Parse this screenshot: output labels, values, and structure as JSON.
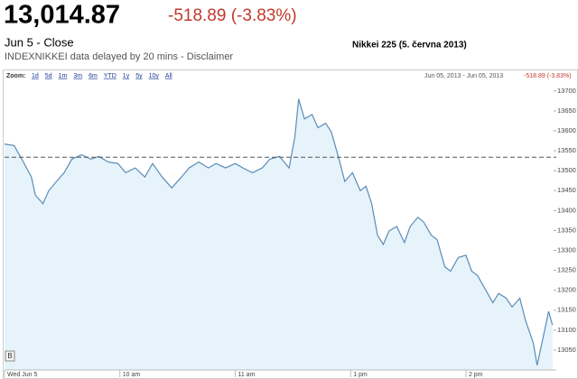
{
  "header": {
    "price": "13,014.87",
    "change": "-518.89 (-3.83%)",
    "date": "Jun 5 - Close",
    "source": "INDEXNIKKEI data delayed by 20 mins - Disclaimer",
    "chart_title": "Nikkei 225 (5. června 2013)"
  },
  "toolbar": {
    "zoom": "Zoom:",
    "links": [
      "1d",
      "5d",
      "1m",
      "3m",
      "6m",
      "YTD",
      "1y",
      "5y",
      "10y",
      "All"
    ],
    "range": "Jun 05, 2013 - Jun 05, 2013",
    "change": "-518.89 (-3.83%)"
  },
  "chart_data": {
    "type": "area",
    "flag": "B",
    "x": [
      0,
      5,
      9,
      14,
      16,
      20,
      23,
      27,
      31,
      35,
      40,
      45,
      49,
      54,
      59,
      63,
      68,
      73,
      77,
      82,
      87,
      92,
      96,
      101,
      106,
      110,
      115,
      120,
      124,
      129,
      134,
      138,
      143,
      148,
      151,
      153,
      156,
      160,
      163,
      167,
      170,
      174,
      177,
      181,
      185,
      188,
      191,
      194,
      197,
      200,
      204,
      208,
      211,
      215,
      218,
      222,
      225,
      229,
      232,
      236,
      240,
      243,
      246,
      250,
      254,
      257,
      261,
      264,
      268,
      271,
      275,
      277,
      280,
      283,
      285
    ],
    "series": [
      {
        "color": "#5b8db5",
        "values": [
          13567,
          13563,
          13529,
          13484,
          13439,
          13417,
          13450,
          13473,
          13495,
          13529,
          13540,
          13529,
          13536,
          13522,
          13518,
          13495,
          13507,
          13484,
          13518,
          13484,
          13457,
          13484,
          13507,
          13522,
          13507,
          13518,
          13507,
          13518,
          13507,
          13495,
          13507,
          13529,
          13536,
          13507,
          13585,
          13680,
          13630,
          13641,
          13608,
          13619,
          13597,
          13529,
          13473,
          13495,
          13450,
          13461,
          13417,
          13338,
          13315,
          13349,
          13360,
          13320,
          13360,
          13383,
          13371,
          13338,
          13327,
          13259,
          13248,
          13282,
          13288,
          13248,
          13237,
          13203,
          13169,
          13192,
          13180,
          13158,
          13180,
          13124,
          13068,
          13012,
          13079,
          13147,
          13113
        ]
      }
    ],
    "previous_close": 13533.76,
    "xlim": [
      0,
      287
    ],
    "ylim": [
      13000,
      13720
    ],
    "xticks": [
      {
        "value": 0,
        "label": "Wed Jun 5"
      },
      {
        "value": 60,
        "label": "10 am"
      },
      {
        "value": 120,
        "label": "11 am"
      },
      {
        "value": 180,
        "label": "1 pm"
      },
      {
        "value": 240,
        "label": "2 pm"
      }
    ],
    "yticks": [
      13050,
      13100,
      13150,
      13200,
      13250,
      13300,
      13350,
      13400,
      13450,
      13500,
      13550,
      13600,
      13650,
      13700
    ]
  }
}
